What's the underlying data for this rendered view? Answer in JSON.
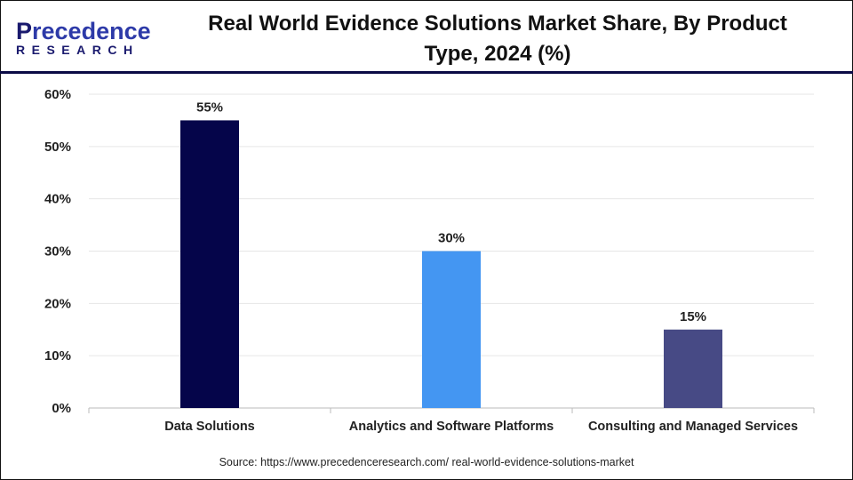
{
  "brand": {
    "name": "Precedence",
    "sub": "RESEARCH"
  },
  "source": "Source: https://www.precedenceresearch.com/ real-world-evidence-solutions-market",
  "colors": {
    "header_line": "#0a0a45",
    "grid": "#e6e6e6"
  },
  "chart_data": {
    "type": "bar",
    "title": "Real World Evidence Solutions Market Share, By Product Type, 2024 (%)",
    "title_lines": [
      "Real World Evidence Solutions Market Share, By Product",
      "Type, 2024 (%)"
    ],
    "categories": [
      "Data Solutions",
      "Analytics and Software Platforms",
      "Consulting and Managed Services"
    ],
    "values": [
      55,
      30,
      15
    ],
    "data_labels": [
      "55%",
      "30%",
      "15%"
    ],
    "bar_colors": [
      "#05054a",
      "#4496f2",
      "#474a85"
    ],
    "ylim": [
      0,
      60
    ],
    "yticks": [
      0,
      10,
      20,
      30,
      40,
      50,
      60
    ],
    "ytick_labels": [
      "0%",
      "10%",
      "20%",
      "30%",
      "40%",
      "50%",
      "60%"
    ],
    "grid": true,
    "xlabel": "",
    "ylabel": ""
  }
}
